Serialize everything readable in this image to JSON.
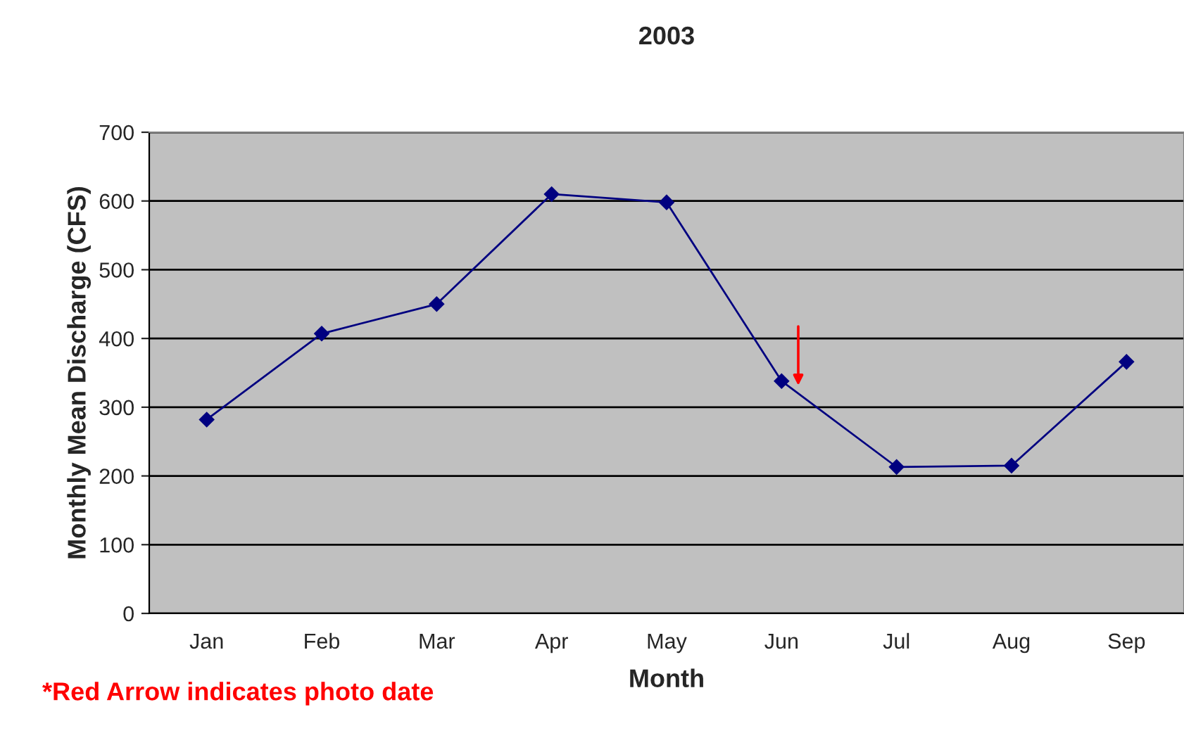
{
  "chart_data": {
    "type": "line",
    "title": "2003",
    "xlabel": "Month",
    "ylabel": "Monthly Mean Discharge (CFS)",
    "categories": [
      "Jan",
      "Feb",
      "Mar",
      "Apr",
      "May",
      "Jun",
      "Jul",
      "Aug",
      "Sep"
    ],
    "series": [
      {
        "color": "#000080",
        "values": [
          282,
          407,
          450,
          610,
          598,
          338,
          213,
          215,
          366
        ]
      }
    ],
    "ylim": [
      0,
      700
    ],
    "yticks": [
      0,
      100,
      200,
      300,
      400,
      500,
      600,
      700
    ],
    "grid": "y",
    "marker": "diamond",
    "line_style": "solid",
    "legend": false,
    "annotations": [
      "*Red Arrow indicates photo date"
    ]
  }
}
